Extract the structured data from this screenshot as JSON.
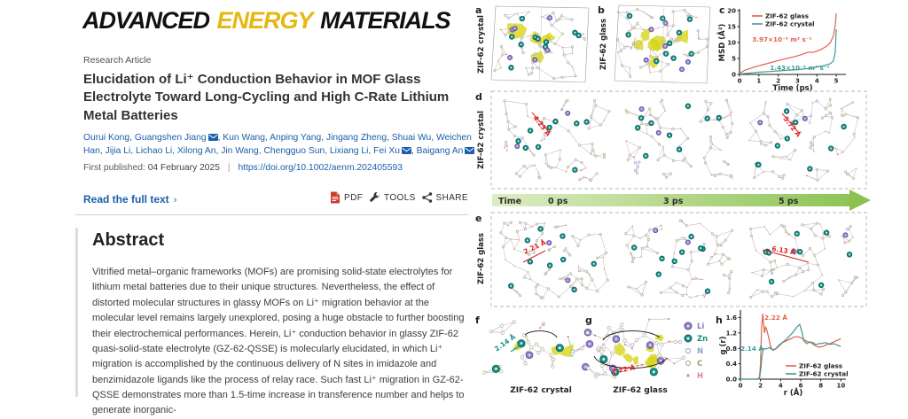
{
  "journal": {
    "logo_word1": "ADVANCED",
    "logo_word2": "ENERGY",
    "logo_word3": "MATERIALS"
  },
  "article": {
    "type_label": "Research Article",
    "title": "Elucidation of Li⁺ Conduction Behavior in MOF Glass Electrolyte Toward Long-Cycling and High C-Rate Lithium Metal Batteries",
    "authors": [
      {
        "name": "Ourui Kong",
        "email": false
      },
      {
        "name": "Guangshen Jiang",
        "email": true
      },
      {
        "name": "Kun Wang",
        "email": false
      },
      {
        "name": "Anping Yang",
        "email": false
      },
      {
        "name": "Jingang Zheng",
        "email": false
      },
      {
        "name": "Shuai Wu",
        "email": false
      },
      {
        "name": "Weichen Han",
        "email": false
      },
      {
        "name": "Jijia Li",
        "email": false
      },
      {
        "name": "Lichao Li",
        "email": false
      },
      {
        "name": "Xilong An",
        "email": false
      },
      {
        "name": "Jin Wang",
        "email": false
      },
      {
        "name": "Chengguo Sun",
        "email": false
      },
      {
        "name": "Lixiang Li",
        "email": false
      },
      {
        "name": "Fei Xu",
        "email": true
      },
      {
        "name": "Baigang An",
        "email": true
      }
    ],
    "first_published_label": "First published:",
    "first_published_date": "04 February 2025",
    "doi": "https://doi.org/10.1002/aenm.202405593",
    "read_full_text": "Read the full text",
    "actions": {
      "pdf": "PDF",
      "tools": "TOOLS",
      "share": "SHARE"
    },
    "abstract_heading": "Abstract",
    "abstract_text": "Vitrified metal–organic frameworks (MOFs) are promising solid-state electrolytes for lithium metal batteries due to their unique structures. Nevertheless, the effect of distorted molecular structures in glassy MOFs on Li⁺ migration behavior at the molecular level remains largely unexplored, posing a huge obstacle to further boosting their electrochemical performances. Herein, Li⁺ conduction behavior in glassy ZIF-62 quasi-solid-state electrolyte (GZ-62-QSSE) is molecularly elucidated, in which Li⁺ migration is accomplished by the continuous delivery of N sites in imidazole and benzimidazole ligands like the process of relay race. Such fast Li⁺ migration in GZ-62-QSSE demonstrates more than 1.5-time increase in transference number and helps to generate inorganic-"
  },
  "figure": {
    "panel_labels": [
      "a",
      "b",
      "c",
      "d",
      "e",
      "f",
      "g",
      "h"
    ],
    "side_labels": {
      "a": "ZIF-62 crystal",
      "b": "ZIF-62 glass",
      "d": "ZIF-62 crystal",
      "e": "ZIF-62 glass"
    },
    "captions": {
      "f": "ZIF-62 crystal",
      "g": "ZIF-62 glass"
    },
    "timeline": {
      "label": "Time",
      "ticks": [
        "0 ps",
        "3 ps",
        "5 ps"
      ]
    },
    "annotations": {
      "d_first": "4.23 Å",
      "d_last": "5.72 Å",
      "e_first": "2.21 Å",
      "e_last": "6.13 Å",
      "f": "2.14 Å",
      "g": "2.22 Å"
    },
    "atom_legend": [
      {
        "symbol": "Li",
        "color": "#8a7ac6"
      },
      {
        "symbol": "Zn",
        "color": "#14918a"
      },
      {
        "symbol": "N",
        "color": "#8f9fc4"
      },
      {
        "symbol": "C",
        "color": "#a0a060"
      },
      {
        "symbol": "H",
        "color": "#d886a8"
      }
    ],
    "series_colors": {
      "glass": "#e0604a",
      "crystal": "#3f9a96"
    }
  },
  "chart_data": [
    {
      "type": "line",
      "title": "",
      "xlabel": "Time (ps)",
      "ylabel": "MSD (Å²)",
      "xlim": [
        0,
        5.5
      ],
      "ylim": [
        0,
        20
      ],
      "xticks": [
        "0",
        "1",
        "2",
        "3",
        "4",
        "5"
      ],
      "yticks": [
        "0",
        "5",
        "10",
        "15",
        "20"
      ],
      "grid": false,
      "legend_position": "top-left",
      "series": [
        {
          "name": "ZIF-62 glass",
          "color": "#e0604a",
          "x": [
            0,
            0.3,
            0.8,
            1.3,
            1.8,
            2.3,
            2.8,
            3.2,
            3.5,
            3.6,
            3.8,
            4.0,
            4.2,
            4.5,
            4.7,
            4.85,
            4.95,
            5.0
          ],
          "y": [
            0.3,
            1.4,
            2.4,
            3.2,
            4.0,
            4.8,
            5.5,
            6.2,
            6.9,
            7.0,
            6.9,
            7.3,
            7.8,
            8.8,
            10.0,
            12.0,
            15.5,
            19.2
          ]
        },
        {
          "name": "ZIF-62 crystal",
          "color": "#3f9a96",
          "x": [
            0,
            0.5,
            1.0,
            1.5,
            2.0,
            2.5,
            3.0,
            3.5,
            3.8,
            4.0,
            4.3,
            4.5,
            4.7,
            4.85,
            4.95,
            5.0
          ],
          "y": [
            0.1,
            0.4,
            0.7,
            0.9,
            1.1,
            1.3,
            1.5,
            1.8,
            2.0,
            2.4,
            2.6,
            3.0,
            3.4,
            4.2,
            7.0,
            14.2
          ]
        }
      ],
      "annotations": [
        {
          "text": "3.97×10⁻⁹ m² s⁻¹",
          "color": "#e0604a"
        },
        {
          "text": "1.43×10⁻⁹ m² s⁻¹",
          "color": "#3f9a96"
        }
      ]
    },
    {
      "type": "line",
      "title": "",
      "xlabel": "r (Å)",
      "ylabel": "g (r)",
      "xlim": [
        0,
        10.5
      ],
      "ylim": [
        0,
        1.75
      ],
      "xticks": [
        "0",
        "2",
        "4",
        "6",
        "8",
        "10"
      ],
      "yticks": [
        "0.0",
        "0.4",
        "0.8",
        "1.2",
        "1.6"
      ],
      "grid": false,
      "legend_position": "bottom-right",
      "series": [
        {
          "name": "ZIF-62 glass",
          "color": "#e0604a",
          "x": [
            0,
            1.7,
            1.9,
            2.0,
            2.1,
            2.22,
            2.3,
            2.4,
            2.5,
            2.6,
            2.8,
            3.0,
            3.2,
            3.5,
            3.8,
            4.2,
            4.6,
            5.0,
            5.4,
            5.8,
            6.2,
            6.6,
            7.0,
            7.4,
            7.8,
            8.2,
            8.6,
            9.0,
            9.4,
            9.8,
            10.0
          ],
          "y": [
            0,
            0,
            0.05,
            0.4,
            1.3,
            1.7,
            1.45,
            1.2,
            1.35,
            1.3,
            1.1,
            0.85,
            0.76,
            0.78,
            0.85,
            0.95,
            1.0,
            1.05,
            1.1,
            1.1,
            1.05,
            0.98,
            0.95,
            0.88,
            0.83,
            0.85,
            0.9,
            0.93,
            0.98,
            1.03,
            1.05
          ]
        },
        {
          "name": "ZIF-62 crystal",
          "color": "#3f9a96",
          "x": [
            0,
            1.9,
            2.05,
            2.14,
            2.3,
            2.5,
            2.7,
            2.9,
            3.1,
            3.3,
            3.6,
            3.9,
            4.2,
            4.5,
            4.8,
            5.1,
            5.4,
            5.7,
            5.9,
            6.1,
            6.3,
            6.6,
            6.9,
            7.2,
            7.5,
            7.8,
            8.1,
            8.5,
            8.9,
            9.3,
            9.7,
            10.0
          ],
          "y": [
            0,
            0,
            0.3,
            0.6,
            0.8,
            0.78,
            0.8,
            0.82,
            0.78,
            0.75,
            0.82,
            0.9,
            0.96,
            1.02,
            1.1,
            1.18,
            1.28,
            1.38,
            1.42,
            1.25,
            1.0,
            0.92,
            0.97,
            0.95,
            0.9,
            0.92,
            0.93,
            0.95,
            0.9,
            0.92,
            0.88,
            0.85
          ]
        }
      ],
      "annotations": [
        {
          "text": "2.22 Å",
          "color": "#e0604a"
        },
        {
          "text": "2.14 Å",
          "color": "#3f9a96"
        }
      ]
    }
  ]
}
